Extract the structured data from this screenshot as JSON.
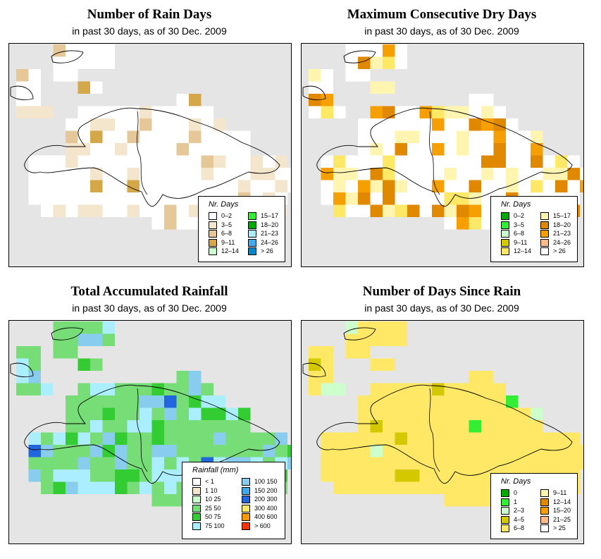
{
  "panels": [
    {
      "title": "Number of Rain Days",
      "subtitle": "in past 30 days, as of  30 Dec. 2009",
      "legend_title": "Nr. Days",
      "legend_items": [
        {
          "label": "0–2",
          "color": "#ffffff"
        },
        {
          "label": "3–5",
          "color": "#f4e6cc"
        },
        {
          "label": "6–8",
          "color": "#e6c898"
        },
        {
          "label": "9–11",
          "color": "#d4a848"
        },
        {
          "label": "12–14",
          "color": "#ccffcc"
        },
        {
          "label": "15–17",
          "color": "#33ee33"
        },
        {
          "label": "18–20",
          "color": "#00aa00"
        },
        {
          "label": "21–23",
          "color": "#aaeeff"
        },
        {
          "label": "24–26",
          "color": "#44aaee"
        },
        {
          "label": "> 26",
          "color": "#0088cc"
        }
      ]
    },
    {
      "title": "Maximum Consecutive Dry Days",
      "subtitle": "in past 30 days, as of  30 Dec. 2009",
      "legend_title": "Nr. Days",
      "legend_items": [
        {
          "label": "0–2",
          "color": "#00aa00"
        },
        {
          "label": "3–5",
          "color": "#33ee33"
        },
        {
          "label": "6–8",
          "color": "#ccffcc"
        },
        {
          "label": "9–11",
          "color": "#d4c800"
        },
        {
          "label": "12–14",
          "color": "#ffe866"
        },
        {
          "label": "15–17",
          "color": "#fff5b0"
        },
        {
          "label": "18–20",
          "color": "#e08800"
        },
        {
          "label": "21–23",
          "color": "#f5a000"
        },
        {
          "label": "24–26",
          "color": "#ffbb88"
        },
        {
          "label": "> 26",
          "color": "#ffffff"
        }
      ]
    },
    {
      "title": "Total Accumulated Rainfall",
      "subtitle": "in past 30 days, as of  30 Dec. 2009",
      "legend_title": "Rainfall (mm)",
      "legend_items": [
        {
          "label": "< 1",
          "color": "#ffffff"
        },
        {
          "label": "1   10",
          "color": "#f4e6cc"
        },
        {
          "label": "10   25",
          "color": "#ccffcc"
        },
        {
          "label": "25   50",
          "color": "#77dd77"
        },
        {
          "label": "50   75",
          "color": "#33cc33"
        },
        {
          "label": "75   100",
          "color": "#aaeeff"
        },
        {
          "label": "100   150",
          "color": "#88ccee"
        },
        {
          "label": "150   200",
          "color": "#44aaee"
        },
        {
          "label": "200   300",
          "color": "#2266dd"
        },
        {
          "label": "300   400",
          "color": "#ffe866"
        },
        {
          "label": "400   600",
          "color": "#ff9900"
        },
        {
          "label": "> 600",
          "color": "#ff3300"
        }
      ]
    },
    {
      "title": "Number of Days Since Rain",
      "subtitle": "in past 30 days, as of  30 Dec. 2009",
      "legend_title": "Nr. Days",
      "legend_items": [
        {
          "label": "0",
          "color": "#00aa00"
        },
        {
          "label": "1",
          "color": "#33ee33"
        },
        {
          "label": "2–3",
          "color": "#ccffcc"
        },
        {
          "label": "4–5",
          "color": "#d4c800"
        },
        {
          "label": "6–8",
          "color": "#ffe866"
        },
        {
          "label": "9–11",
          "color": "#fff5b0"
        },
        {
          "label": "12–14",
          "color": "#e08800"
        },
        {
          "label": "15–20",
          "color": "#f5a000"
        },
        {
          "label": "21–25",
          "color": "#ffbb88"
        },
        {
          "label": "> 25",
          "color": "#ffffff"
        }
      ]
    }
  ]
}
